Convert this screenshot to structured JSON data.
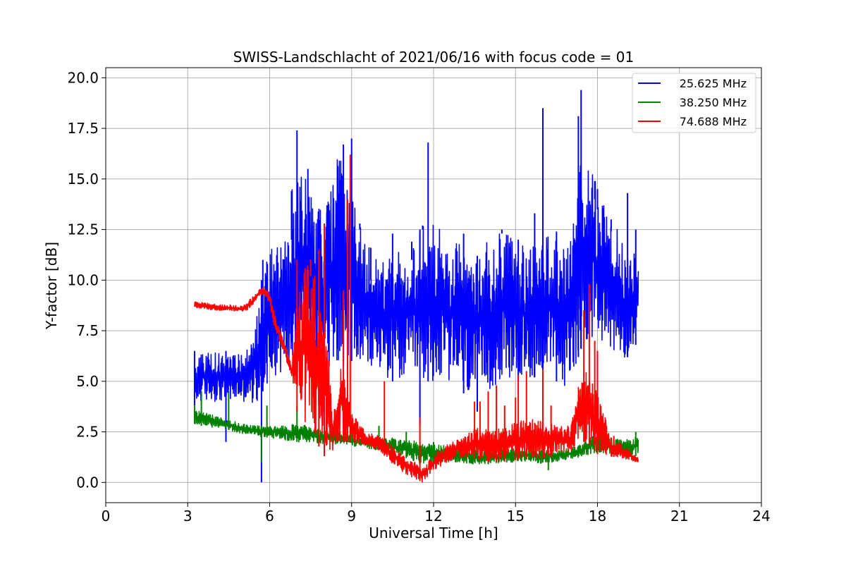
{
  "chart_data": {
    "type": "line",
    "title": "SWISS-Landschlacht of 2021/06/16 with focus code = 01",
    "xlabel": "Universal Time [h]",
    "ylabel": "Y-factor [dB]",
    "xlim": [
      0,
      24
    ],
    "ylim": [
      -1.0,
      20.5
    ],
    "xticks": [
      "0",
      "3",
      "6",
      "9",
      "12",
      "15",
      "18",
      "21",
      "24"
    ],
    "yticks": [
      "0.0",
      "2.5",
      "5.0",
      "7.5",
      "10.0",
      "12.5",
      "15.0",
      "17.5",
      "20.0"
    ],
    "grid": true,
    "legend_position": "top-right",
    "series": [
      {
        "name": "25.625 MHz",
        "color": "#0000ff",
        "x": [
          3.25,
          3.5,
          4.0,
          4.5,
          5.0,
          5.5,
          5.75,
          6.0,
          6.5,
          7.0,
          7.5,
          8.0,
          8.5,
          9.0,
          9.5,
          10.0,
          10.5,
          11.0,
          11.5,
          12.0,
          12.5,
          13.0,
          13.5,
          14.0,
          14.5,
          15.0,
          15.5,
          16.0,
          16.5,
          17.0,
          17.25,
          17.5,
          18.0,
          18.5,
          19.0,
          19.5
        ],
        "low": [
          3.8,
          4.0,
          4.0,
          4.0,
          4.0,
          3.8,
          4.5,
          5.0,
          5.5,
          6.0,
          6.0,
          5.5,
          6.0,
          6.0,
          5.5,
          5.5,
          5.0,
          5.0,
          5.0,
          5.0,
          5.0,
          4.5,
          4.0,
          4.5,
          5.0,
          5.0,
          5.0,
          5.5,
          5.0,
          4.5,
          6.0,
          7.0,
          7.0,
          6.5,
          6.0,
          7.0
        ],
        "high": [
          6.0,
          6.5,
          6.5,
          6.5,
          6.5,
          8.0,
          10.5,
          11.5,
          12.0,
          16.0,
          14.5,
          13.0,
          16.5,
          14.0,
          12.0,
          11.0,
          11.5,
          11.5,
          12.5,
          13.5,
          11.5,
          12.0,
          11.0,
          12.0,
          12.5,
          12.0,
          11.5,
          12.5,
          12.0,
          12.0,
          15.0,
          16.5,
          14.5,
          13.0,
          12.0,
          11.0
        ],
        "spikes": [
          [
            3.25,
            6.5
          ],
          [
            4.4,
            2.0
          ],
          [
            5.7,
            0.0
          ],
          [
            5.75,
            11.0
          ],
          [
            6.8,
            12.0
          ],
          [
            7.0,
            17.4
          ],
          [
            7.4,
            15.5
          ],
          [
            8.1,
            12.5
          ],
          [
            8.7,
            16.7
          ],
          [
            9.0,
            17.0
          ],
          [
            9.3,
            12.5
          ],
          [
            9.7,
            10.0
          ],
          [
            10.5,
            12.3
          ],
          [
            11.2,
            11.0
          ],
          [
            11.5,
            2.8
          ],
          [
            11.6,
            12.5
          ],
          [
            11.8,
            16.8
          ],
          [
            13.1,
            12.3
          ],
          [
            13.6,
            3.5
          ],
          [
            14.5,
            12.3
          ],
          [
            15.1,
            12.0
          ],
          [
            15.7,
            13.3
          ],
          [
            16.0,
            18.5
          ],
          [
            16.5,
            12.4
          ],
          [
            17.3,
            18.1
          ],
          [
            17.4,
            19.4
          ],
          [
            17.9,
            14.0
          ],
          [
            18.0,
            13.5
          ],
          [
            18.5,
            12.4
          ],
          [
            19.1,
            14.3
          ],
          [
            19.4,
            12.5
          ]
        ]
      },
      {
        "name": "38.250 MHz",
        "color": "#008000",
        "x": [
          3.25,
          3.5,
          4.0,
          4.5,
          5.0,
          5.5,
          6.0,
          6.5,
          7.0,
          7.5,
          8.0,
          8.5,
          9.0,
          9.5,
          10.0,
          10.5,
          11.0,
          11.5,
          12.0,
          12.5,
          13.0,
          13.5,
          14.0,
          14.5,
          15.0,
          15.5,
          16.0,
          16.5,
          17.0,
          17.5,
          18.0,
          18.5,
          19.0,
          19.5
        ],
        "low": [
          2.9,
          2.8,
          2.7,
          2.6,
          2.4,
          2.3,
          2.2,
          2.1,
          2.0,
          2.0,
          1.9,
          1.9,
          1.8,
          1.7,
          1.6,
          1.4,
          1.2,
          0.9,
          1.0,
          1.0,
          1.0,
          0.9,
          0.9,
          1.0,
          1.0,
          1.0,
          0.9,
          1.0,
          1.1,
          1.3,
          1.5,
          1.4,
          1.3,
          1.3
        ],
        "high": [
          3.6,
          3.5,
          3.3,
          3.1,
          2.9,
          2.8,
          2.8,
          2.8,
          2.9,
          2.8,
          2.6,
          2.5,
          2.4,
          2.3,
          2.2,
          2.2,
          2.1,
          2.0,
          1.9,
          1.8,
          1.7,
          1.6,
          1.6,
          1.6,
          1.7,
          1.7,
          1.6,
          1.6,
          1.7,
          2.0,
          2.5,
          2.2,
          2.1,
          2.3
        ],
        "spikes": [
          [
            3.25,
            3.8
          ],
          [
            3.5,
            4.5
          ],
          [
            4.5,
            4.5
          ],
          [
            5.7,
            1.0
          ],
          [
            5.9,
            3.8
          ],
          [
            7.0,
            3.8
          ],
          [
            10.0,
            2.8
          ],
          [
            11.0,
            2.5
          ],
          [
            11.5,
            0.9
          ],
          [
            12.0,
            2.0
          ],
          [
            14.0,
            1.8
          ],
          [
            16.2,
            0.6
          ],
          [
            18.1,
            3.0
          ],
          [
            19.4,
            2.5
          ]
        ]
      },
      {
        "name": "74.688 MHz",
        "color": "#ff0000",
        "x": [
          3.25,
          3.5,
          4.0,
          4.5,
          5.0,
          5.3,
          5.6,
          5.8,
          6.0,
          6.2,
          6.5,
          6.8,
          7.0,
          7.5,
          8.0,
          8.3,
          8.6,
          9.0,
          9.5,
          10.0,
          10.5,
          11.0,
          11.3,
          11.6,
          12.0,
          12.5,
          13.0,
          13.5,
          14.0,
          14.5,
          15.0,
          15.5,
          16.0,
          16.5,
          17.0,
          17.3,
          17.6,
          18.0,
          18.5,
          19.0,
          19.5
        ],
        "low": [
          8.6,
          8.6,
          8.5,
          8.5,
          8.4,
          8.6,
          9.2,
          9.3,
          8.8,
          7.5,
          6.5,
          5.2,
          3.5,
          2.5,
          1.3,
          1.5,
          2.0,
          2.0,
          1.8,
          1.6,
          0.9,
          0.4,
          0.2,
          0.0,
          0.6,
          1.0,
          1.2,
          1.2,
          1.0,
          1.0,
          1.1,
          1.2,
          1.2,
          1.3,
          1.4,
          2.0,
          2.0,
          1.4,
          1.3,
          1.1,
          1.0
        ],
        "high": [
          8.95,
          8.9,
          8.8,
          8.8,
          8.7,
          9.1,
          9.6,
          9.7,
          9.3,
          8.2,
          7.0,
          5.8,
          10.0,
          11.0,
          9.0,
          3.5,
          6.0,
          3.5,
          2.5,
          2.3,
          1.8,
          1.2,
          1.0,
          0.7,
          1.4,
          1.9,
          2.2,
          2.7,
          2.6,
          2.7,
          3.0,
          3.2,
          3.0,
          2.8,
          2.8,
          5.0,
          5.5,
          4.5,
          2.2,
          1.8,
          1.2
        ],
        "spikes": [
          [
            7.0,
            11.0
          ],
          [
            7.3,
            9.5
          ],
          [
            7.5,
            10.2
          ],
          [
            7.8,
            11.5
          ],
          [
            8.0,
            12.8
          ],
          [
            8.7,
            9.5
          ],
          [
            8.85,
            14.0
          ],
          [
            8.95,
            16.2
          ],
          [
            10.2,
            5.0
          ],
          [
            11.5,
            3.2
          ],
          [
            13.5,
            4.0
          ],
          [
            13.7,
            4.0
          ],
          [
            14.0,
            4.5
          ],
          [
            14.3,
            4.8
          ],
          [
            14.6,
            3.8
          ],
          [
            15.0,
            4.2
          ],
          [
            15.1,
            5.3
          ],
          [
            15.4,
            5.5
          ],
          [
            16.0,
            5.6
          ],
          [
            16.3,
            3.8
          ],
          [
            17.5,
            8.5
          ],
          [
            17.7,
            9.8
          ],
          [
            17.9,
            7.0
          ],
          [
            18.0,
            6.5
          ],
          [
            18.6,
            2.3
          ]
        ]
      }
    ]
  }
}
